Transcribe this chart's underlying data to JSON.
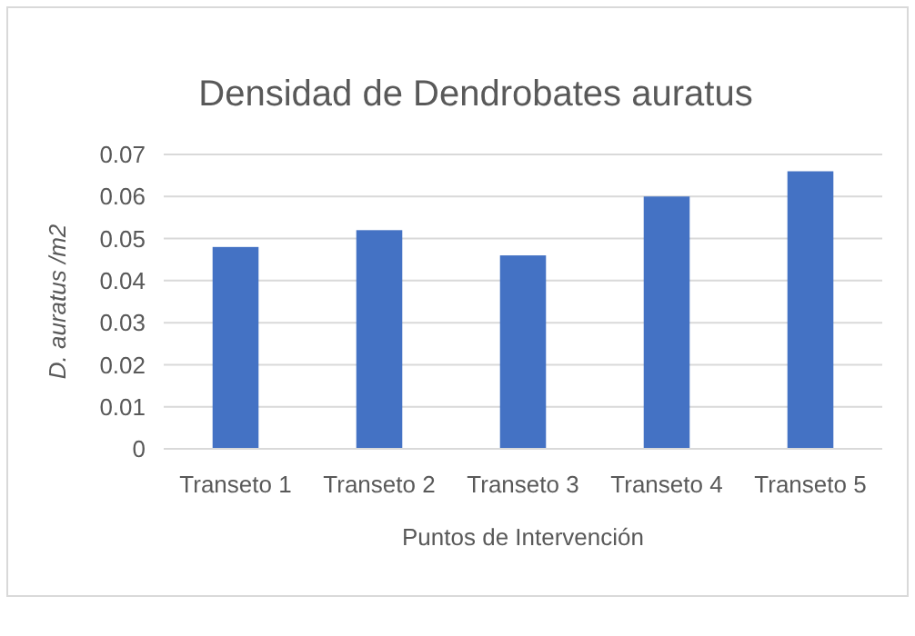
{
  "chart_data": {
    "type": "bar",
    "title": "Densidad de Dendrobates auratus",
    "xlabel": "Puntos de Intervención",
    "ylabel": "D. auratus /m2",
    "categories": [
      "Transeto 1",
      "Transeto 2",
      "Transeto 3",
      "Transeto 4",
      "Transeto 5"
    ],
    "values": [
      0.048,
      0.052,
      0.046,
      0.06,
      0.066
    ],
    "color": "#4472c4",
    "ylim": [
      0,
      0.07
    ],
    "yticks": [
      {
        "value": 0,
        "label": "0"
      },
      {
        "value": 0.01,
        "label": "0.01"
      },
      {
        "value": 0.02,
        "label": "0.02"
      },
      {
        "value": 0.03,
        "label": "0.03"
      },
      {
        "value": 0.04,
        "label": "0.04"
      },
      {
        "value": 0.05,
        "label": "0.05"
      },
      {
        "value": 0.06,
        "label": "0.06"
      },
      {
        "value": 0.07,
        "label": "0.07"
      }
    ],
    "grid": "y"
  }
}
